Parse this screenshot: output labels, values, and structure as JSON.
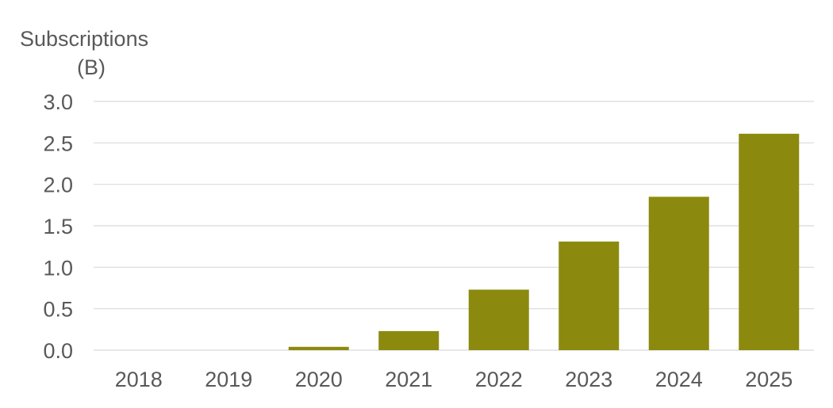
{
  "chart_data": {
    "type": "bar",
    "ylabel_lines": [
      "Subscriptions",
      "(B)"
    ],
    "xlabel": "",
    "categories": [
      "2018",
      "2019",
      "2020",
      "2021",
      "2022",
      "2023",
      "2024",
      "2025"
    ],
    "values": [
      0.0,
      0.0,
      0.04,
      0.23,
      0.73,
      1.31,
      1.85,
      2.61
    ],
    "ylim": [
      0,
      3.0
    ],
    "yticks": [
      "0.0",
      "0.5",
      "1.0",
      "1.5",
      "2.0",
      "2.5",
      "3.0"
    ],
    "grid": true,
    "legend": "none",
    "bar_color": "#8B8A0F",
    "grid_color": "#D9D9D9",
    "text_color": "#595959"
  }
}
